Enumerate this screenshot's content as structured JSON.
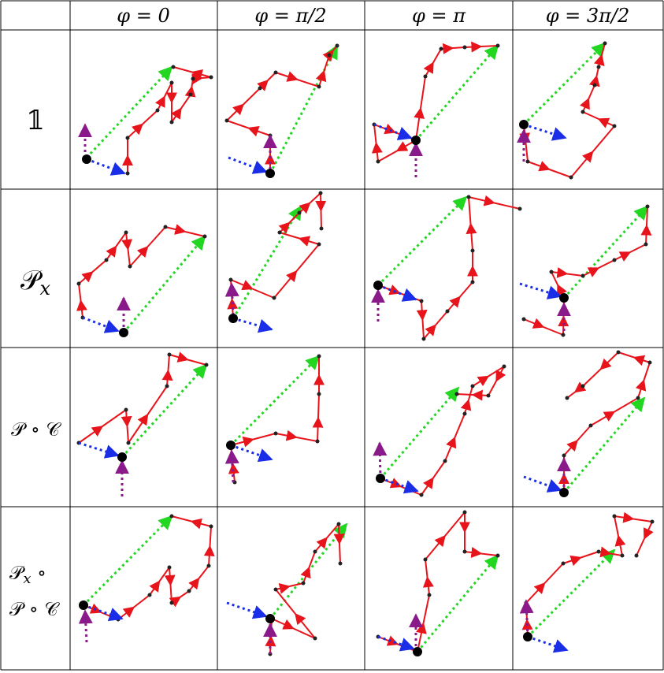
{
  "table": {
    "columns": [
      "φ = 0",
      "φ = π/2",
      "φ = π",
      "φ = 3π/2"
    ],
    "rows": [
      {
        "label": [
          {
            "text": "𝟙"
          }
        ]
      },
      {
        "label": [
          {
            "text": "𝒫"
          },
          {
            "sub": "x"
          }
        ]
      },
      {
        "label": [
          {
            "text": "𝒫 ∘ 𝒞"
          }
        ]
      },
      {
        "label": [
          {
            "text": "𝒫"
          },
          {
            "sub": "x"
          },
          {
            "text": " ∘"
          }
        ],
        "label2": [
          {
            "text": "𝒫 ∘ 𝒞"
          }
        ]
      }
    ]
  }
}
